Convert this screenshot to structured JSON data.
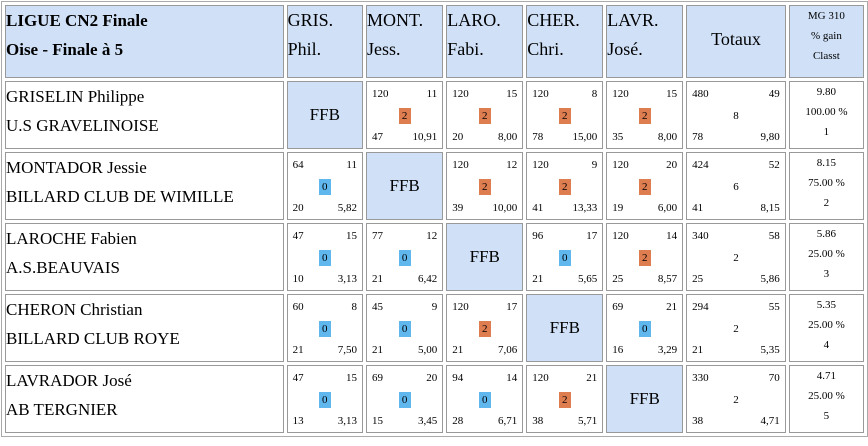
{
  "header": {
    "title_line1": "LIGUE CN2 Finale",
    "title_line2": "Oise - Finale à 5",
    "columns": [
      {
        "line1": "GRIS.",
        "line2": "Phil."
      },
      {
        "line1": "MONT.",
        "line2": "Jess."
      },
      {
        "line1": "LARO.",
        "line2": "Fabi."
      },
      {
        "line1": "CHER.",
        "line2": "Chri."
      },
      {
        "line1": "LAVR.",
        "line2": "José."
      }
    ],
    "totals": "Totaux",
    "mg_line1": "MG 310",
    "mg_line2": "% gain",
    "mg_line3": "Classt"
  },
  "ffb": "FFB",
  "colors": {
    "header_bg": "#cfe0f7",
    "win": "#dd7d50",
    "loss": "#5fb7ee"
  },
  "rows": [
    {
      "name": "GRISELIN Philippe",
      "club": "U.S GRAVELINOISE",
      "matches": [
        null,
        {
          "points": "120",
          "innings": "11",
          "result": "2",
          "high": "47",
          "avg": "10,91"
        },
        {
          "points": "120",
          "innings": "15",
          "result": "2",
          "high": "20",
          "avg": "8,00"
        },
        {
          "points": "120",
          "innings": "8",
          "result": "2",
          "high": "78",
          "avg": "15,00"
        },
        {
          "points": "120",
          "innings": "15",
          "result": "2",
          "high": "35",
          "avg": "8,00"
        }
      ],
      "total": {
        "points": "480",
        "innings": "49",
        "match_points": "8",
        "high": "78",
        "avg": "9,80"
      },
      "mg": {
        "value": "9.80",
        "pct": "100.00 %",
        "rank": "1"
      }
    },
    {
      "name": "MONTADOR Jessie",
      "club": "BILLARD CLUB DE WIMILLE",
      "matches": [
        {
          "points": "64",
          "innings": "11",
          "result": "0",
          "high": "20",
          "avg": "5,82"
        },
        null,
        {
          "points": "120",
          "innings": "12",
          "result": "2",
          "high": "39",
          "avg": "10,00"
        },
        {
          "points": "120",
          "innings": "9",
          "result": "2",
          "high": "41",
          "avg": "13,33"
        },
        {
          "points": "120",
          "innings": "20",
          "result": "2",
          "high": "19",
          "avg": "6,00"
        }
      ],
      "total": {
        "points": "424",
        "innings": "52",
        "match_points": "6",
        "high": "41",
        "avg": "8,15"
      },
      "mg": {
        "value": "8.15",
        "pct": "75.00 %",
        "rank": "2"
      }
    },
    {
      "name": "LAROCHE Fabien",
      "club": "A.S.BEAUVAIS",
      "matches": [
        {
          "points": "47",
          "innings": "15",
          "result": "0",
          "high": "10",
          "avg": "3,13"
        },
        {
          "points": "77",
          "innings": "12",
          "result": "0",
          "high": "21",
          "avg": "6,42"
        },
        null,
        {
          "points": "96",
          "innings": "17",
          "result": "0",
          "high": "21",
          "avg": "5,65"
        },
        {
          "points": "120",
          "innings": "14",
          "result": "2",
          "high": "25",
          "avg": "8,57"
        }
      ],
      "total": {
        "points": "340",
        "innings": "58",
        "match_points": "2",
        "high": "25",
        "avg": "5,86"
      },
      "mg": {
        "value": "5.86",
        "pct": "25.00 %",
        "rank": "3"
      }
    },
    {
      "name": "CHERON Christian",
      "club": "BILLARD CLUB ROYE",
      "matches": [
        {
          "points": "60",
          "innings": "8",
          "result": "0",
          "high": "21",
          "avg": "7,50"
        },
        {
          "points": "45",
          "innings": "9",
          "result": "0",
          "high": "21",
          "avg": "5,00"
        },
        {
          "points": "120",
          "innings": "17",
          "result": "2",
          "high": "21",
          "avg": "7,06"
        },
        null,
        {
          "points": "69",
          "innings": "21",
          "result": "0",
          "high": "16",
          "avg": "3,29"
        }
      ],
      "total": {
        "points": "294",
        "innings": "55",
        "match_points": "2",
        "high": "21",
        "avg": "5,35"
      },
      "mg": {
        "value": "5.35",
        "pct": "25.00 %",
        "rank": "4"
      }
    },
    {
      "name": "LAVRADOR José",
      "club": "AB TERGNIER",
      "matches": [
        {
          "points": "47",
          "innings": "15",
          "result": "0",
          "high": "13",
          "avg": "3,13"
        },
        {
          "points": "69",
          "innings": "20",
          "result": "0",
          "high": "15",
          "avg": "3,45"
        },
        {
          "points": "94",
          "innings": "14",
          "result": "0",
          "high": "28",
          "avg": "6,71"
        },
        {
          "points": "120",
          "innings": "21",
          "result": "2",
          "high": "38",
          "avg": "5,71"
        },
        null
      ],
      "total": {
        "points": "330",
        "innings": "70",
        "match_points": "2",
        "high": "38",
        "avg": "4,71"
      },
      "mg": {
        "value": "4.71",
        "pct": "25.00 %",
        "rank": "5"
      }
    }
  ]
}
